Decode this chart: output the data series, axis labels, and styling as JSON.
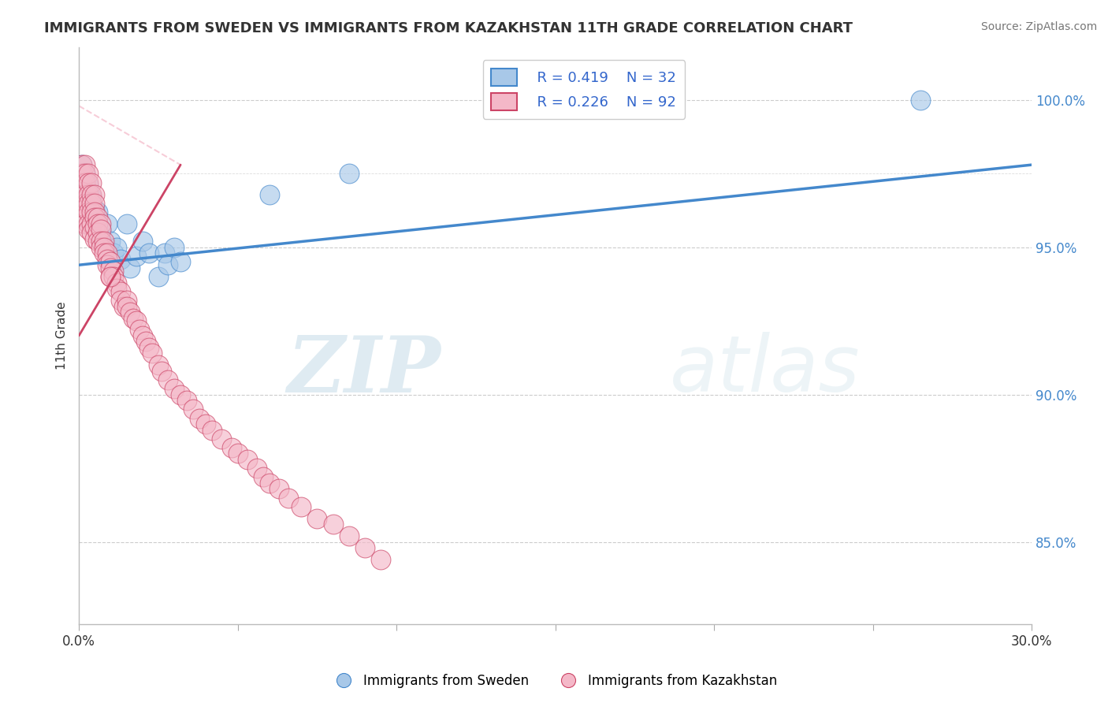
{
  "title": "IMMIGRANTS FROM SWEDEN VS IMMIGRANTS FROM KAZAKHSTAN 11TH GRADE CORRELATION CHART",
  "source": "Source: ZipAtlas.com",
  "ylabel": "11th Grade",
  "ytick_labels": [
    "100.0%",
    "95.0%",
    "90.0%",
    "85.0%"
  ],
  "ytick_values": [
    1.0,
    0.95,
    0.9,
    0.85
  ],
  "xmin": 0.0,
  "xmax": 0.3,
  "ymin": 0.822,
  "ymax": 1.018,
  "legend_r_sweden": "R = 0.419",
  "legend_n_sweden": "N = 32",
  "legend_r_kazakhstan": "R = 0.226",
  "legend_n_kazakhstan": "N = 92",
  "color_sweden": "#a8c8e8",
  "color_kazakhstan": "#f4b8c8",
  "color_trendline_sweden": "#4488cc",
  "color_trendline_kazakhstan": "#cc4466",
  "watermark_zip": "ZIP",
  "watermark_atlas": "atlas",
  "sweden_x": [
    0.001,
    0.002,
    0.002,
    0.003,
    0.003,
    0.004,
    0.004,
    0.005,
    0.005,
    0.006,
    0.006,
    0.007,
    0.007,
    0.008,
    0.009,
    0.01,
    0.011,
    0.012,
    0.013,
    0.015,
    0.016,
    0.018,
    0.02,
    0.022,
    0.025,
    0.027,
    0.028,
    0.03,
    0.032,
    0.06,
    0.085,
    0.265
  ],
  "sweden_y": [
    0.978,
    0.975,
    0.972,
    0.971,
    0.969,
    0.967,
    0.965,
    0.963,
    0.96,
    0.962,
    0.958,
    0.956,
    0.953,
    0.951,
    0.958,
    0.952,
    0.948,
    0.95,
    0.946,
    0.958,
    0.943,
    0.947,
    0.952,
    0.948,
    0.94,
    0.948,
    0.944,
    0.95,
    0.945,
    0.968,
    0.975,
    1.0
  ],
  "kazakhstan_x": [
    0.001,
    0.001,
    0.001,
    0.001,
    0.001,
    0.002,
    0.002,
    0.002,
    0.002,
    0.002,
    0.002,
    0.002,
    0.002,
    0.003,
    0.003,
    0.003,
    0.003,
    0.003,
    0.003,
    0.003,
    0.004,
    0.004,
    0.004,
    0.004,
    0.004,
    0.004,
    0.005,
    0.005,
    0.005,
    0.005,
    0.005,
    0.005,
    0.006,
    0.006,
    0.006,
    0.006,
    0.007,
    0.007,
    0.007,
    0.007,
    0.008,
    0.008,
    0.008,
    0.009,
    0.009,
    0.009,
    0.01,
    0.01,
    0.01,
    0.011,
    0.011,
    0.012,
    0.012,
    0.013,
    0.013,
    0.014,
    0.015,
    0.015,
    0.016,
    0.017,
    0.018,
    0.019,
    0.02,
    0.021,
    0.022,
    0.023,
    0.025,
    0.026,
    0.028,
    0.03,
    0.032,
    0.034,
    0.036,
    0.038,
    0.04,
    0.042,
    0.045,
    0.048,
    0.05,
    0.053,
    0.056,
    0.058,
    0.06,
    0.063,
    0.066,
    0.07,
    0.075,
    0.08,
    0.085,
    0.09,
    0.095,
    0.01
  ],
  "kazakhstan_y": [
    0.978,
    0.975,
    0.972,
    0.968,
    0.965,
    0.978,
    0.975,
    0.972,
    0.968,
    0.965,
    0.963,
    0.96,
    0.958,
    0.975,
    0.972,
    0.968,
    0.965,
    0.962,
    0.958,
    0.956,
    0.972,
    0.968,
    0.965,
    0.962,
    0.958,
    0.955,
    0.968,
    0.965,
    0.962,
    0.96,
    0.957,
    0.953,
    0.96,
    0.958,
    0.955,
    0.952,
    0.958,
    0.956,
    0.952,
    0.95,
    0.952,
    0.95,
    0.948,
    0.948,
    0.946,
    0.944,
    0.945,
    0.943,
    0.94,
    0.942,
    0.94,
    0.938,
    0.936,
    0.935,
    0.932,
    0.93,
    0.932,
    0.93,
    0.928,
    0.926,
    0.925,
    0.922,
    0.92,
    0.918,
    0.916,
    0.914,
    0.91,
    0.908,
    0.905,
    0.902,
    0.9,
    0.898,
    0.895,
    0.892,
    0.89,
    0.888,
    0.885,
    0.882,
    0.88,
    0.878,
    0.875,
    0.872,
    0.87,
    0.868,
    0.865,
    0.862,
    0.858,
    0.856,
    0.852,
    0.848,
    0.844,
    0.94
  ]
}
